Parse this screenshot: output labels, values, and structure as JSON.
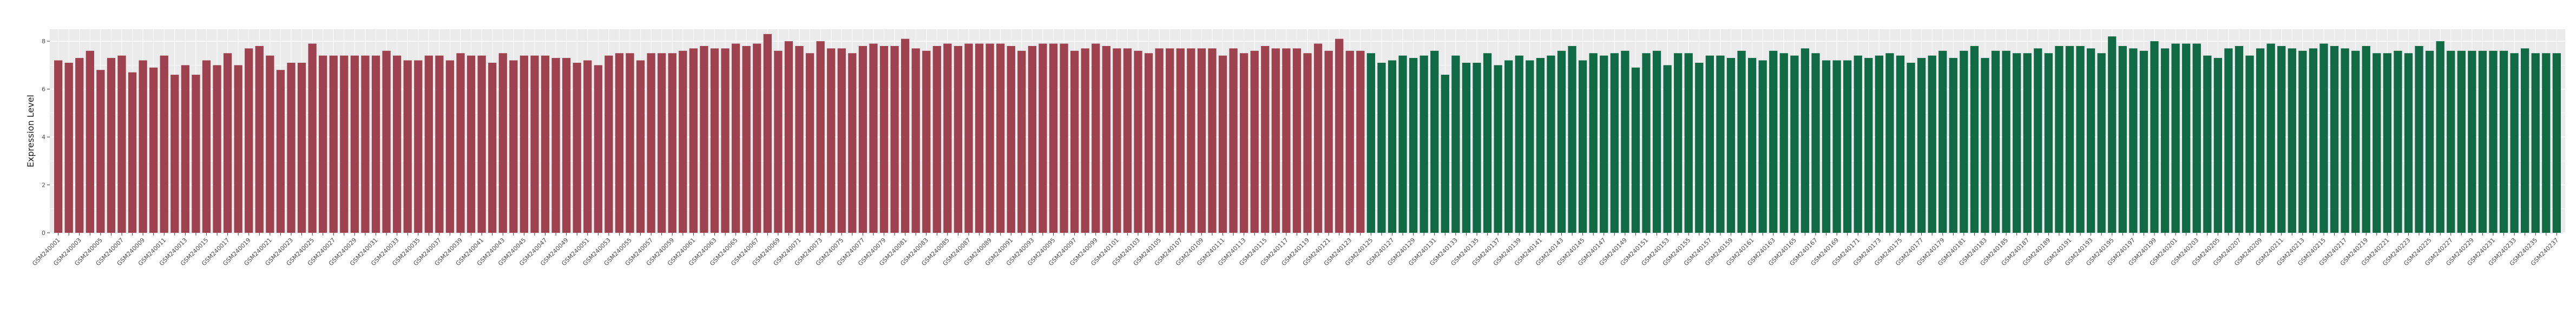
{
  "chart_data": {
    "type": "bar",
    "title": "",
    "xlabel": "",
    "ylabel": "Expression Level",
    "ylim": [
      0,
      8.5
    ],
    "yticks": [
      0,
      2,
      4,
      6,
      8
    ],
    "grid": true,
    "legend": "none",
    "colors": {
      "group_a": "#9e4250",
      "group_b": "#0f6a45",
      "panel": "#ebebeb",
      "grid": "#ffffff"
    },
    "series": [
      {
        "name": "",
        "start_index": 1,
        "values": [
          7.2,
          7.1,
          7.3,
          7.6,
          6.8,
          7.3,
          7.4,
          6.7,
          7.2,
          6.9,
          7.4,
          6.6,
          7.0,
          6.6,
          7.2,
          7.0,
          7.5,
          7.0,
          7.7,
          7.8,
          7.4,
          6.8,
          7.1,
          7.1,
          7.9,
          7.4,
          7.4,
          7.4,
          7.4,
          7.4,
          7.4,
          7.6,
          7.4,
          7.2,
          7.2,
          7.4,
          7.4,
          7.2,
          7.5,
          7.4,
          7.4,
          7.1,
          7.5,
          7.2,
          7.4,
          7.4,
          7.4,
          7.3,
          7.3,
          7.1,
          7.2,
          7.0,
          7.4,
          7.5,
          7.5,
          7.2,
          7.5,
          7.5,
          7.5,
          7.6,
          7.7,
          7.8,
          7.7,
          7.7,
          7.9,
          7.8,
          7.9,
          8.3,
          7.6,
          8.0,
          7.8,
          7.5,
          8.0,
          7.7,
          7.7,
          7.5,
          7.8,
          7.9,
          7.8,
          7.8,
          8.1,
          7.7,
          7.6,
          7.8,
          7.9,
          7.8,
          7.9,
          7.9,
          7.9,
          7.9,
          7.8,
          7.6,
          7.8,
          7.9,
          7.9,
          7.9,
          7.6,
          7.7,
          7.9,
          7.8,
          7.7,
          7.7,
          7.6,
          7.5,
          7.7,
          7.7,
          7.7,
          7.7,
          7.7,
          7.7,
          7.4,
          7.7,
          7.5,
          7.6,
          7.8,
          7.7,
          7.7,
          7.7,
          7.5,
          7.9,
          7.6,
          8.1,
          7.6,
          7.6
        ]
      },
      {
        "name": "",
        "start_index": 125,
        "values": [
          7.5,
          7.1,
          7.2,
          7.4,
          7.3,
          7.4,
          7.6,
          6.6,
          7.4,
          7.1,
          7.1,
          7.5,
          7.0,
          7.2,
          7.4,
          7.2,
          7.3,
          7.4,
          7.6,
          7.8,
          7.2,
          7.5,
          7.4,
          7.5,
          7.6,
          6.9,
          7.5,
          7.6,
          7.0,
          7.5,
          7.5,
          7.1,
          7.4,
          7.4,
          7.3,
          7.6,
          7.3,
          7.2,
          7.6,
          7.5,
          7.4,
          7.7,
          7.5,
          7.2,
          7.2,
          7.2,
          7.4,
          7.3,
          7.4,
          7.5,
          7.4,
          7.1,
          7.3,
          7.4,
          7.6,
          7.3,
          7.6,
          7.8,
          7.3,
          7.6,
          7.6,
          7.5,
          7.5,
          7.7,
          7.5,
          7.8,
          7.8,
          7.8,
          7.7,
          7.5,
          8.2,
          7.8,
          7.7,
          7.6,
          8.0,
          7.7,
          7.9,
          7.9,
          7.9,
          7.4,
          7.3,
          7.7,
          7.8,
          7.4,
          7.7,
          7.9,
          7.8,
          7.7,
          7.6,
          7.7,
          7.9,
          7.8,
          7.7,
          7.6,
          7.8,
          7.5,
          7.5,
          7.6,
          7.5,
          7.8,
          7.6,
          8.0,
          7.6,
          7.6,
          7.6,
          7.6,
          7.6,
          7.6,
          7.5,
          7.7,
          7.5,
          7.5,
          7.5
        ]
      }
    ],
    "category_prefix": "GSM24"
  }
}
